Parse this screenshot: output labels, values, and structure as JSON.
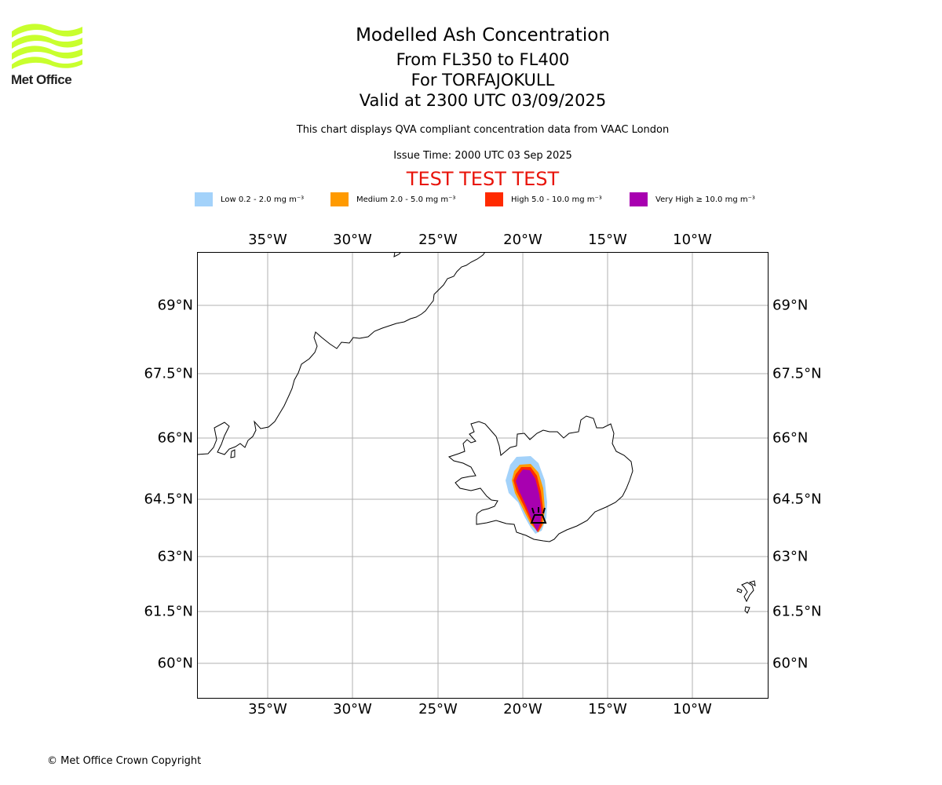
{
  "header": {
    "logo_text": "Met Office",
    "title": "Modelled Ash Concentration",
    "subtitle1": "From FL350 to FL400",
    "subtitle2": "For TORFAJOKULL",
    "subtitle3": "Valid at 2300 UTC 03/09/2025",
    "note": "This chart displays QVA compliant concentration data from VAAC London",
    "issue_time": "Issue Time: 2000 UTC 03 Sep 2025",
    "test_banner": "TEST TEST TEST"
  },
  "legend": [
    {
      "label": "Low 0.2 - 2.0 mg m⁻³",
      "color": "#a3d2fa"
    },
    {
      "label": "Medium 2.0 - 5.0 mg m⁻³",
      "color": "#ff9a00"
    },
    {
      "label": "High 5.0 - 10.0 mg m⁻³",
      "color": "#ff2a00"
    },
    {
      "label": "Very High ≥ 10.0 mg m⁻³",
      "color": "#a800b0"
    }
  ],
  "axes": {
    "lon_ticks": [
      "35°W",
      "30°W",
      "25°W",
      "20°W",
      "15°W",
      "10°W"
    ],
    "lat_ticks": [
      "69°N",
      "67.5°N",
      "66°N",
      "64.5°N",
      "63°N",
      "61.5°N",
      "60°N"
    ],
    "grid": true
  },
  "map": {
    "volcano": "TORFAJOKULL",
    "volcano_icon": "volcano-symbol-icon"
  },
  "footer": {
    "copyright": "© Met Office Crown Copyright"
  },
  "colors": {
    "logo": "#c8ff2e",
    "test_banner": "#e8140a",
    "grid": "#b0b0b0"
  }
}
